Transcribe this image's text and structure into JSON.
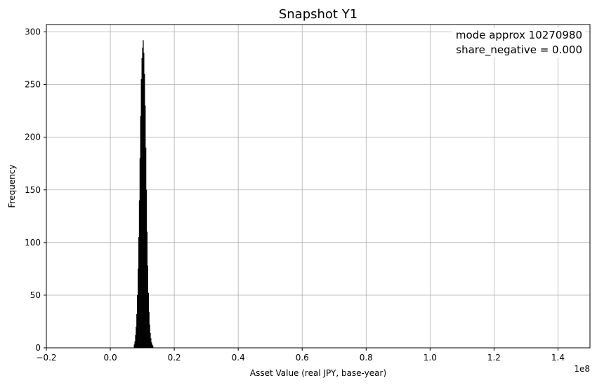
{
  "chart_data": {
    "type": "bar",
    "title": "Snapshot Y1",
    "xlabel": "Asset Value (real JPY, base-year)",
    "ylabel": "Frequency",
    "x_offset_label": "1e8",
    "xlim": [
      -20000000,
      150000000
    ],
    "ylim": [
      0,
      307
    ],
    "x_ticks": [
      -20000000,
      0,
      20000000,
      40000000,
      60000000,
      80000000,
      100000000,
      120000000,
      140000000
    ],
    "x_tick_labels": [
      "−0.2",
      "0.0",
      "0.2",
      "0.4",
      "0.6",
      "0.8",
      "1.0",
      "1.2",
      "1.4"
    ],
    "y_ticks": [
      0,
      50,
      100,
      150,
      200,
      250,
      300
    ],
    "y_tick_labels": [
      "0",
      "50",
      "100",
      "150",
      "200",
      "250",
      "300"
    ],
    "grid": true,
    "bar_color": "#000000",
    "annotation_lines": [
      "mode approx 10270980",
      "share_negative = 0.000"
    ],
    "annotation_position": "top-right",
    "bins": {
      "x": [
        7400000,
        7600000,
        7800000,
        8000000,
        8200000,
        8400000,
        8600000,
        8800000,
        9000000,
        9200000,
        9400000,
        9600000,
        9800000,
        10000000,
        10200000,
        10400000,
        10600000,
        10800000,
        11000000,
        11200000,
        11400000,
        11600000,
        11800000,
        12000000,
        12200000,
        12400000,
        12600000,
        12800000,
        13000000,
        13200000
      ],
      "values": [
        3,
        6,
        12,
        20,
        32,
        50,
        75,
        105,
        140,
        180,
        220,
        255,
        275,
        285,
        292,
        280,
        260,
        230,
        190,
        150,
        110,
        78,
        52,
        34,
        22,
        14,
        9,
        5,
        3,
        2
      ]
    }
  }
}
